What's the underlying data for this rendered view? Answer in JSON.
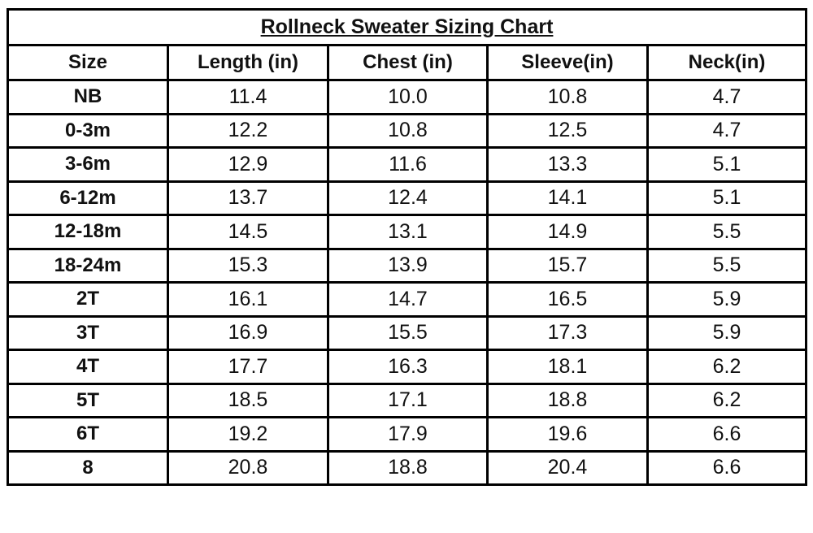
{
  "title": "Rollneck Sweater Sizing Chart",
  "table": {
    "header": [
      "Size",
      "Length (in)",
      "Chest (in)",
      "Sleeve(in)",
      "Neck(in)"
    ],
    "rows": [
      [
        "NB",
        "11.4",
        "10.0",
        "10.8",
        "4.7"
      ],
      [
        "0-3m",
        "12.2",
        "10.8",
        "12.5",
        "4.7"
      ],
      [
        "3-6m",
        "12.9",
        "11.6",
        "13.3",
        "5.1"
      ],
      [
        "6-12m",
        "13.7",
        "12.4",
        "14.1",
        "5.1"
      ],
      [
        "12-18m",
        "14.5",
        "13.1",
        "14.9",
        "5.5"
      ],
      [
        "18-24m",
        "15.3",
        "13.9",
        "15.7",
        "5.5"
      ],
      [
        "2T",
        "16.1",
        "14.7",
        "16.5",
        "5.9"
      ],
      [
        "3T",
        "16.9",
        "15.5",
        "17.3",
        "5.9"
      ],
      [
        "4T",
        "17.7",
        "16.3",
        "18.1",
        "6.2"
      ],
      [
        "5T",
        "18.5",
        "17.1",
        "18.8",
        "6.2"
      ],
      [
        "6T",
        "19.2",
        "17.9",
        "19.6",
        "6.6"
      ],
      [
        "8",
        "20.8",
        "18.8",
        "20.4",
        "6.6"
      ]
    ]
  }
}
